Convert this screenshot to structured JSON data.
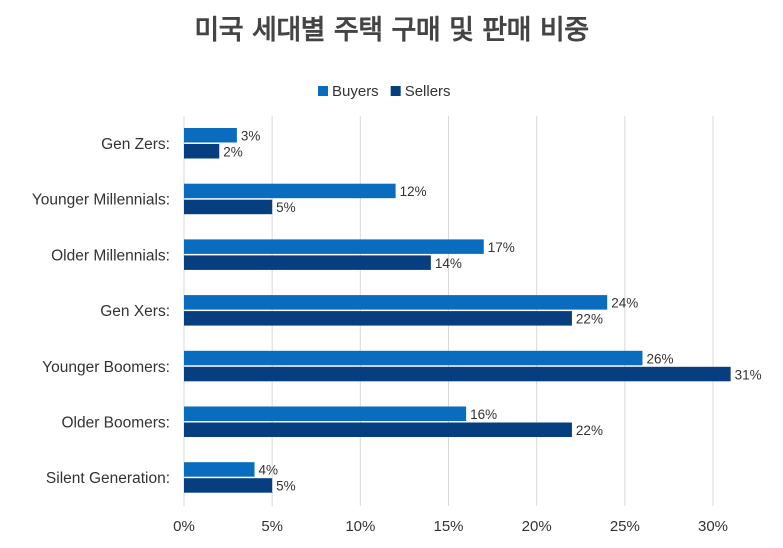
{
  "chart_data": {
    "type": "bar",
    "orientation": "horizontal",
    "title": "미국 세대별 주택 구매 및 판매 비중",
    "categories": [
      "Gen Zers:",
      "Younger Millennials:",
      "Older Millennials:",
      "Gen Xers:",
      "Younger Boomers:",
      "Older Boomers:",
      "Silent Generation:"
    ],
    "series": [
      {
        "name": "Buyers",
        "color": "#0a6cbf",
        "values": [
          3,
          12,
          17,
          24,
          26,
          16,
          4
        ],
        "labels": [
          "3%",
          "12%",
          "17%",
          "24%",
          "26%",
          "16%",
          "4%"
        ]
      },
      {
        "name": "Sellers",
        "color": "#063e80",
        "values": [
          2,
          5,
          14,
          22,
          31,
          22,
          5
        ],
        "labels": [
          "2%",
          "5%",
          "14%",
          "22%",
          "31%",
          "22%",
          "5%"
        ]
      }
    ],
    "xlim": [
      0,
      30
    ],
    "xticks": [
      0,
      5,
      10,
      15,
      20,
      25,
      30
    ],
    "xtick_labels": [
      "0%",
      "5%",
      "10%",
      "15%",
      "20%",
      "25%",
      "30%"
    ],
    "grid": "vertical",
    "legend_position": "top-center"
  }
}
